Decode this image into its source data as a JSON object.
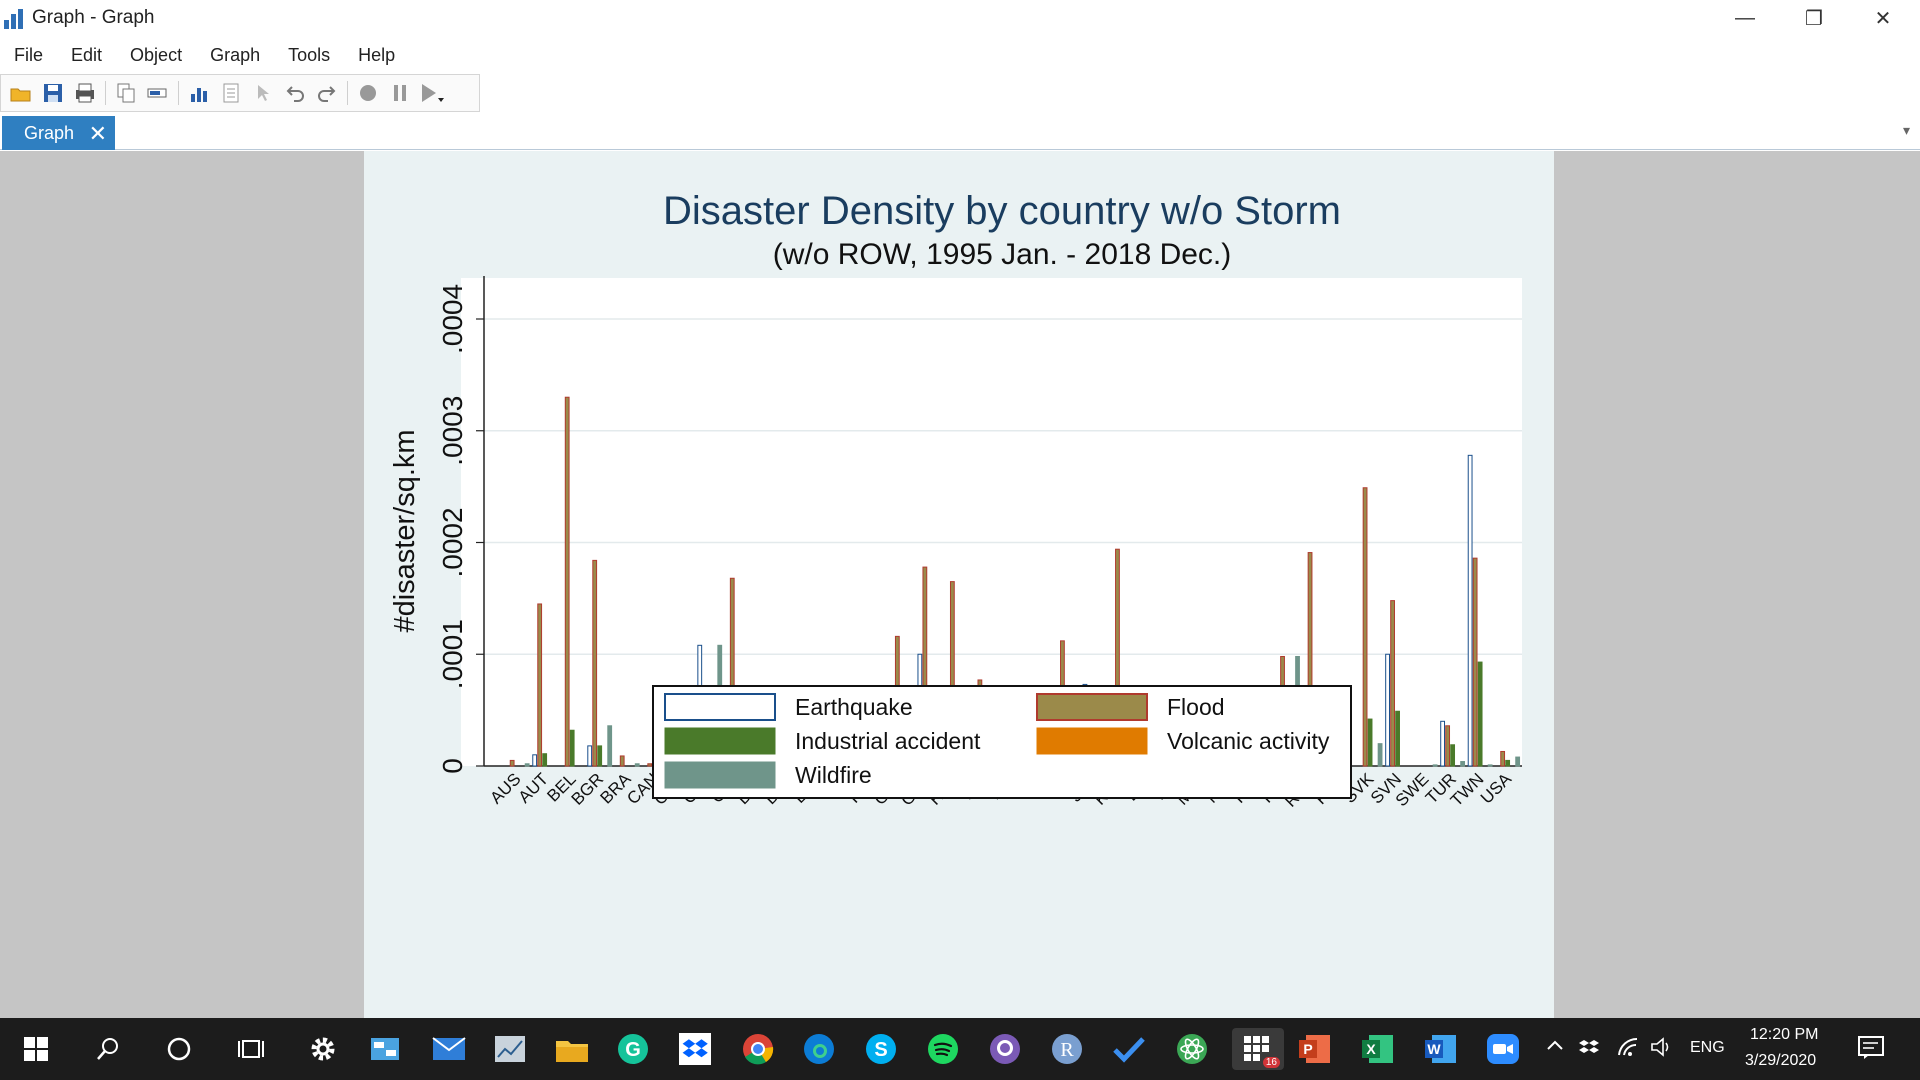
{
  "window": {
    "title": "Graph - Graph",
    "minimize": "—",
    "maximize": "❐",
    "close": "✕"
  },
  "menu": [
    "File",
    "Edit",
    "Object",
    "Graph",
    "Tools",
    "Help"
  ],
  "tab": {
    "label": "Graph",
    "close": "✕",
    "dropdown": "▾"
  },
  "chart_data": {
    "type": "bar",
    "title": "Disaster Density by country w/o Storm",
    "subtitle": "(w/o ROW, 1995 Jan. - 2018 Dec.)",
    "ylabel": "#disaster/sq.km",
    "xlabel": "",
    "ylim": [
      0,
      0.0004
    ],
    "yticks": [
      0,
      0.0001,
      0.0002,
      0.0003,
      0.0004
    ],
    "ytick_labels": [
      "0",
      ".0001",
      ".0002",
      ".0003",
      ".0004"
    ],
    "grid": true,
    "legend_position": "bottom",
    "categories": [
      "AUS",
      "AUT",
      "BEL",
      "BGR",
      "BRA",
      "CAN",
      "CHN",
      "CYP",
      "CZE",
      "DEU",
      "DNK",
      "ESP",
      "FIN",
      "FRA",
      "GBR",
      "GRC",
      "HUN",
      "IDN",
      "IND",
      "IRL",
      "ITA",
      "JPN",
      "KOR",
      "LTU",
      "LVA",
      "MEX",
      "NLD",
      "POL",
      "PRT",
      "ROM",
      "RUS",
      "SVK",
      "SVN",
      "SWE",
      "TUR",
      "TWN",
      "USA"
    ],
    "series": [
      {
        "name": "Earthquake",
        "color": "#ffffff",
        "stroke": "#1a4f8b",
        "values": [
          0,
          1e-05,
          0,
          1.8e-05,
          0,
          0,
          1.2e-05,
          0.000108,
          0,
          0,
          0,
          2e-06,
          0,
          0,
          4e-06,
          0.0001,
          1e-05,
          3.8e-05,
          0,
          0,
          4.7e-05,
          7.3e-05,
          2e-05,
          0,
          0,
          8e-06,
          0,
          0,
          0,
          0,
          0,
          0,
          0.0001,
          0,
          4e-05,
          0.000278,
          0
        ]
      },
      {
        "name": "Flood",
        "color": "#9b8a4a",
        "stroke": "#b03a2e",
        "values": [
          5e-06,
          0.000145,
          0.00033,
          0.000184,
          9e-06,
          2e-06,
          2.3e-05,
          0,
          0.000168,
          3.7e-05,
          0,
          3.8e-05,
          2e-06,
          6.1e-05,
          0.000116,
          0.000178,
          0.000165,
          7.7e-05,
          6.3e-05,
          5.8e-05,
          0.000112,
          6.2e-05,
          0.000194,
          3.2e-05,
          0,
          2.3e-05,
          3e-05,
          3.2e-05,
          9.8e-05,
          0.000191,
          3e-06,
          0.000249,
          0.000148,
          0,
          3.6e-05,
          0.000186,
          1.3e-05
        ]
      },
      {
        "name": "Industrial accident",
        "color": "#4a7a2a",
        "stroke": "#4a7a2a",
        "values": [
          0,
          1.1e-05,
          3.2e-05,
          1.8e-05,
          0,
          0,
          5.1e-05,
          0,
          1.2e-05,
          2.6e-05,
          4.7e-05,
          8e-06,
          0,
          7e-06,
          2e-05,
          0,
          3.3e-05,
          1.1e-05,
          1.7e-05,
          1.3e-05,
          6e-06,
          9e-06,
          5.1e-05,
          0,
          0,
          9e-06,
          0,
          1e-05,
          0,
          1.7e-05,
          2e-06,
          4.2e-05,
          4.9e-05,
          0,
          1.9e-05,
          9.3e-05,
          5e-06
        ]
      },
      {
        "name": "Volcanic activity",
        "color": "#e07b00",
        "stroke": "#e07b00",
        "values": [
          0,
          0,
          0,
          0,
          0,
          0,
          0,
          0,
          0,
          0,
          0,
          0,
          0,
          0,
          0,
          0,
          0,
          1.1e-05,
          0,
          0,
          6e-06,
          1e-05,
          0,
          0,
          0,
          0,
          0,
          0,
          0,
          0,
          0,
          0,
          0,
          0,
          0,
          0,
          0
        ]
      },
      {
        "name": "Wildfire",
        "color": "#6f958a",
        "stroke": "#6f958a",
        "values": [
          2e-06,
          0,
          0,
          3.6e-05,
          2e-06,
          2e-06,
          0,
          0.000108,
          0,
          0,
          0,
          2.2e-05,
          0,
          0,
          1e-05,
          2e-06,
          7e-05,
          3e-06,
          0,
          0,
          8e-06,
          5e-06,
          4e-05,
          0,
          1.5e-05,
          2e-06,
          0,
          0,
          9.8e-05,
          0,
          0,
          2e-05,
          0,
          1e-06,
          4e-06,
          1e-06,
          8e-06
        ]
      }
    ]
  },
  "taskbar": {
    "time": "12:20 PM",
    "date": "3/29/2020",
    "lang": "ENG",
    "badge": "16",
    "apps": [
      "start-icon",
      "search-icon",
      "cortana-icon",
      "task-view-icon",
      "settings-icon",
      "control-panel-icon",
      "mail-icon",
      "stata-icon",
      "file-explorer-icon",
      "grammarly-icon",
      "dropbox-icon",
      "chrome-icon",
      "edge-icon",
      "skype-icon",
      "spotify-icon",
      "github-icon",
      "r-icon",
      "todo-icon",
      "atom-icon",
      "graph-app-icon",
      "powerpoint-icon",
      "excel-icon",
      "word-icon",
      "zoom-icon"
    ]
  }
}
